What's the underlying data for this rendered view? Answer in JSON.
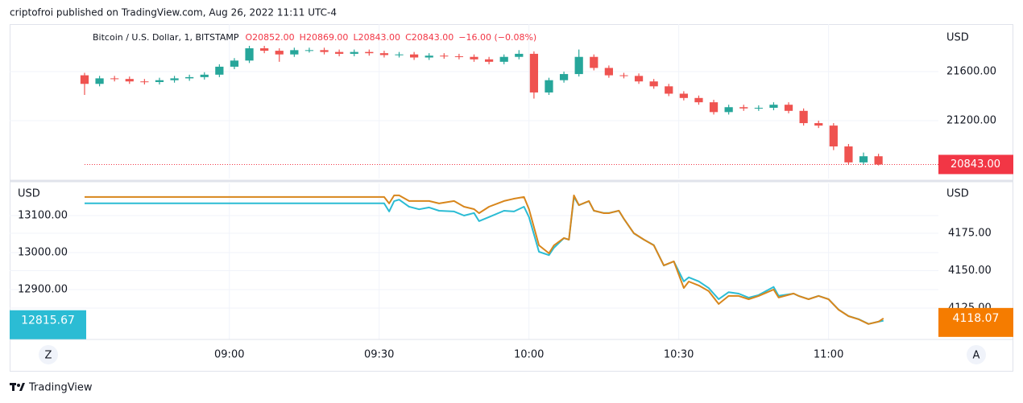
{
  "header": {
    "attribution": "criptofroi published on TradingView.com, Aug 26, 2022 11:11 UTC-4",
    "controls": [
      "Z",
      "A"
    ],
    "brand": "TradingView"
  },
  "chart_data": [
    {
      "type": "candlestick",
      "title": "Bitcoin / U.S. Dollar, 1, BITSTAMP",
      "ohlc_labels": [
        "O20852.00",
        "H20869.00",
        "L20843.00",
        "C20843.00"
      ],
      "change_label": "−16.00 (−0.08%)",
      "x": [
        "08:31",
        "08:34",
        "08:37",
        "08:40",
        "08:43",
        "08:46",
        "08:49",
        "08:52",
        "08:55",
        "08:58",
        "09:01",
        "09:04",
        "09:07",
        "09:10",
        "09:13",
        "09:16",
        "09:19",
        "09:22",
        "09:25",
        "09:28",
        "09:31",
        "09:34",
        "09:37",
        "09:40",
        "09:43",
        "09:46",
        "09:49",
        "09:52",
        "09:55",
        "09:58",
        "10:01",
        "10:04",
        "10:07",
        "10:10",
        "10:13",
        "10:16",
        "10:19",
        "10:22",
        "10:25",
        "10:28",
        "10:31",
        "10:34",
        "10:37",
        "10:40",
        "10:43",
        "10:46",
        "10:49",
        "10:52",
        "10:55",
        "10:58",
        "11:01",
        "11:04",
        "11:07",
        "11:10"
      ],
      "open": [
        21570,
        21500,
        21545,
        21540,
        21520,
        21515,
        21530,
        21545,
        21555,
        21575,
        21640,
        21690,
        21790,
        21770,
        21740,
        21775,
        21775,
        21760,
        21745,
        21760,
        21750,
        21735,
        21740,
        21715,
        21730,
        21725,
        21720,
        21700,
        21680,
        21720,
        21745,
        21430,
        21530,
        21580,
        21720,
        21630,
        21570,
        21565,
        21520,
        21480,
        21420,
        21385,
        21350,
        21270,
        21310,
        21300,
        21305,
        21330,
        21280,
        21180,
        21160,
        20990,
        20860,
        20910
      ],
      "high": [
        21590,
        21565,
        21565,
        21560,
        21540,
        21550,
        21565,
        21575,
        21595,
        21660,
        21710,
        21810,
        21810,
        21790,
        21795,
        21795,
        21795,
        21780,
        21780,
        21780,
        21770,
        21760,
        21760,
        21750,
        21750,
        21745,
        21740,
        21720,
        21740,
        21775,
        21765,
        21550,
        21600,
        21780,
        21740,
        21650,
        21590,
        21585,
        21540,
        21500,
        21440,
        21405,
        21370,
        21330,
        21330,
        21325,
        21350,
        21350,
        21300,
        21200,
        21180,
        21010,
        20940,
        20930
      ],
      "low": [
        21410,
        21480,
        21520,
        21500,
        21495,
        21495,
        21510,
        21525,
        21535,
        21555,
        21620,
        21670,
        21750,
        21680,
        21720,
        21755,
        21740,
        21725,
        21725,
        21730,
        21715,
        21715,
        21695,
        21695,
        21705,
        21700,
        21680,
        21660,
        21660,
        21700,
        21380,
        21410,
        21510,
        21560,
        21610,
        21550,
        21545,
        21500,
        21460,
        21400,
        21365,
        21330,
        21250,
        21250,
        21280,
        21280,
        21285,
        21260,
        21160,
        21140,
        20960,
        20840,
        20840,
        20835
      ],
      "close": [
        21500,
        21545,
        21540,
        21520,
        21515,
        21530,
        21545,
        21555,
        21575,
        21640,
        21690,
        21790,
        21770,
        21740,
        21775,
        21775,
        21760,
        21745,
        21760,
        21750,
        21735,
        21740,
        21715,
        21730,
        21725,
        21720,
        21700,
        21680,
        21720,
        21745,
        21430,
        21530,
        21580,
        21720,
        21630,
        21570,
        21565,
        21520,
        21480,
        21420,
        21385,
        21350,
        21270,
        21310,
        21300,
        21305,
        21330,
        21280,
        21180,
        21160,
        20990,
        20860,
        20910,
        20843
      ],
      "up_color": "#26a69a",
      "down_color": "#ef5350",
      "xlim": [
        "08:16",
        "11:22"
      ],
      "ylim": [
        20728,
        21987
      ],
      "yticks": [
        {
          "value": 21200,
          "label": "21200.00"
        },
        {
          "value": 21600,
          "label": "21600.00"
        }
      ],
      "y_unit": "USD",
      "grid": true,
      "last_price": {
        "value": 20843,
        "label": "20843.00"
      },
      "last_color": "#f23645"
    },
    {
      "type": "line",
      "x": [
        "08:31",
        "09:31",
        "09:32",
        "09:33",
        "09:34",
        "09:36",
        "09:38",
        "09:40",
        "09:42",
        "09:45",
        "09:47",
        "09:49",
        "09:50",
        "09:52",
        "09:55",
        "09:57",
        "09:59",
        "10:00",
        "10:02",
        "10:04",
        "10:05",
        "10:07",
        "10:08",
        "10:09",
        "10:10",
        "10:12",
        "10:13",
        "10:15",
        "10:16",
        "10:18",
        "10:19",
        "10:21",
        "10:23",
        "10:25",
        "10:27",
        "10:29",
        "10:31",
        "10:32",
        "10:34",
        "10:36",
        "10:38",
        "10:40",
        "10:42",
        "10:44",
        "10:46",
        "10:49",
        "10:50",
        "10:53",
        "10:54",
        "10:56",
        "10:58",
        "11:00",
        "11:02",
        "11:04",
        "11:06",
        "11:08",
        "11:10",
        "11:11"
      ],
      "series": [
        {
          "color": "#2bbcd4",
          "axis": "y",
          "last_label": "12815.67",
          "values": [
            13133,
            13133,
            13111,
            13139,
            13143,
            13124,
            13117,
            13122,
            13113,
            13111,
            13100,
            13107,
            13085,
            13096,
            13113,
            13111,
            13124,
            13096,
            13002,
            12993,
            13013,
            13039,
            13035,
            13150,
            13128,
            13139,
            13113,
            13107,
            13107,
            13113,
            13091,
            13052,
            13035,
            13020,
            12965,
            12976,
            12922,
            12933,
            12922,
            12904,
            12874,
            12893,
            12889,
            12878,
            12885,
            12907,
            12883,
            12889,
            12883,
            12874,
            12883,
            12874,
            12846,
            12828,
            12820,
            12807,
            12813,
            12815.67
          ]
        },
        {
          "color": "#d8861c",
          "axis": "y2",
          "last_label": "4118.07",
          "label_color": "#f57c00",
          "values": [
            4199.2,
            4199.2,
            4194.9,
            4200.3,
            4200.3,
            4196.5,
            4196.5,
            4196.5,
            4194.9,
            4196.5,
            4192.7,
            4191.1,
            4188.4,
            4192.7,
            4196.5,
            4198.1,
            4199.2,
            4191.1,
            4166.9,
            4161.6,
            4166.9,
            4171.8,
            4170.7,
            4200.3,
            4193.8,
            4196.5,
            4190.1,
            4188.4,
            4188.4,
            4190.1,
            4184.7,
            4175.0,
            4170.7,
            4166.9,
            4153.5,
            4156.2,
            4138.4,
            4142.7,
            4140.1,
            4136.3,
            4127.7,
            4133.1,
            4133.1,
            4130.9,
            4133.1,
            4137.4,
            4132.0,
            4134.7,
            4133.1,
            4130.9,
            4133.1,
            4130.9,
            4123.9,
            4119.6,
            4117.5,
            4114.3,
            4115.9,
            4118.07
          ]
        }
      ],
      "xlim": [
        "08:16",
        "11:22"
      ],
      "xticks": [
        "09:00",
        "09:30",
        "10:00",
        "10:30",
        "11:00"
      ],
      "ylim": [
        12765,
        13187
      ],
      "yticks": [
        {
          "value": 13100,
          "label": "13100.00"
        },
        {
          "value": 13000,
          "label": "13000.00"
        },
        {
          "value": 12900,
          "label": "12900.00"
        }
      ],
      "y_unit": "USD",
      "y2lim": [
        4104,
        4208.3
      ],
      "y2ticks": [
        {
          "value": 4175,
          "label": "4175.00"
        },
        {
          "value": 4150,
          "label": "4150.00"
        },
        {
          "value": 4125,
          "label": "4125.00"
        }
      ],
      "y2_unit": "USD",
      "grid": true
    }
  ]
}
